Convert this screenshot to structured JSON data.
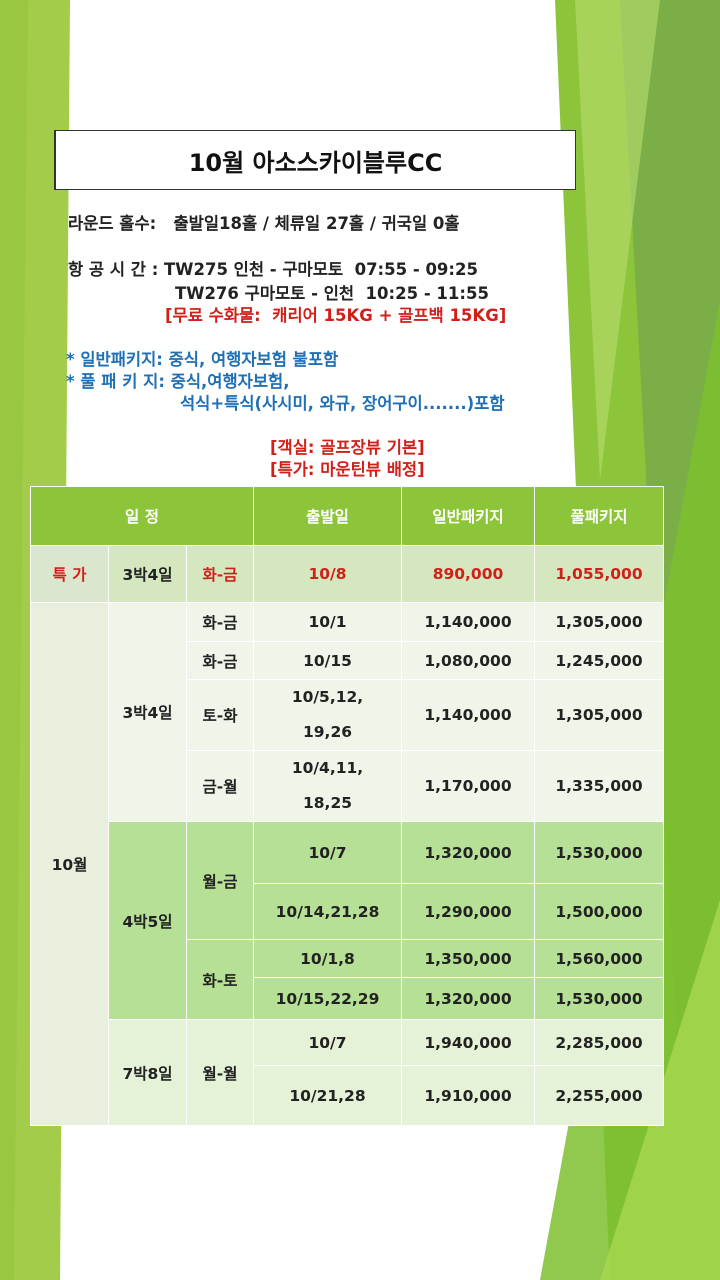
{
  "title": "10월 아소스카이블루CC",
  "info": {
    "rounds": "라운드 홀수:   출발일18홀 / 체류일 27홀 / 귀국일 0홀",
    "flight1": "항 공 시 간 : TW275 인천 - 구마모토  07:55 - 09:25",
    "flight2": "TW276 구마모토 - 인천  10:25 - 11:55",
    "baggage": "[무료 수화물:  캐리어 15KG + 골프백 15KG]",
    "pkg_basic": "* 일반패키지: 중식, 여행자보험 불포함",
    "pkg_full": "* 풀 패 키 지: 중식,여행자보험,",
    "pkg_full2": "석식+특식(사시미, 와규, 장어구이.......)포함",
    "room": "[객실: 골프장뷰 기본]",
    "special": "[특가: 마운틴뷰 배정]"
  },
  "table": {
    "headers": {
      "schedule": "일 정",
      "departure": "출발일",
      "basic": "일반패키지",
      "full": "풀패키지"
    },
    "special_row": {
      "label": "특 가",
      "duration": "3박4일",
      "days": "화-금",
      "date": "10/8",
      "basic": "890,000",
      "full": "1,055,000"
    },
    "month": "10월",
    "group1": {
      "duration": "3박4일",
      "rows": [
        {
          "days": "화-금",
          "date": "10/1",
          "basic": "1,140,000",
          "full": "1,305,000"
        },
        {
          "days": "화-금",
          "date": "10/15",
          "basic": "1,080,000",
          "full": "1,245,000"
        },
        {
          "days": "토-화",
          "date_l1": "10/5,12,",
          "date_l2": "19,26",
          "basic": "1,140,000",
          "full": "1,305,000"
        },
        {
          "days": "금-월",
          "date_l1": "10/4,11,",
          "date_l2": "18,25",
          "basic": "1,170,000",
          "full": "1,335,000"
        }
      ]
    },
    "group2": {
      "duration": "4박5일",
      "days_a": "월-금",
      "days_b": "화-토",
      "rows": [
        {
          "date": "10/7",
          "basic": "1,320,000",
          "full": "1,530,000"
        },
        {
          "date": "10/14,21,28",
          "basic": "1,290,000",
          "full": "1,500,000"
        },
        {
          "date": "10/1,8",
          "basic": "1,350,000",
          "full": "1,560,000"
        },
        {
          "date": "10/15,22,29",
          "basic": "1,320,000",
          "full": "1,530,000"
        }
      ]
    },
    "group3": {
      "duration": "7박8일",
      "days": "월-월",
      "rows": [
        {
          "date": "10/7",
          "basic": "1,940,000",
          "full": "2,285,000"
        },
        {
          "date": "10/21,28",
          "basic": "1,910,000",
          "full": "2,255,000"
        }
      ]
    }
  }
}
